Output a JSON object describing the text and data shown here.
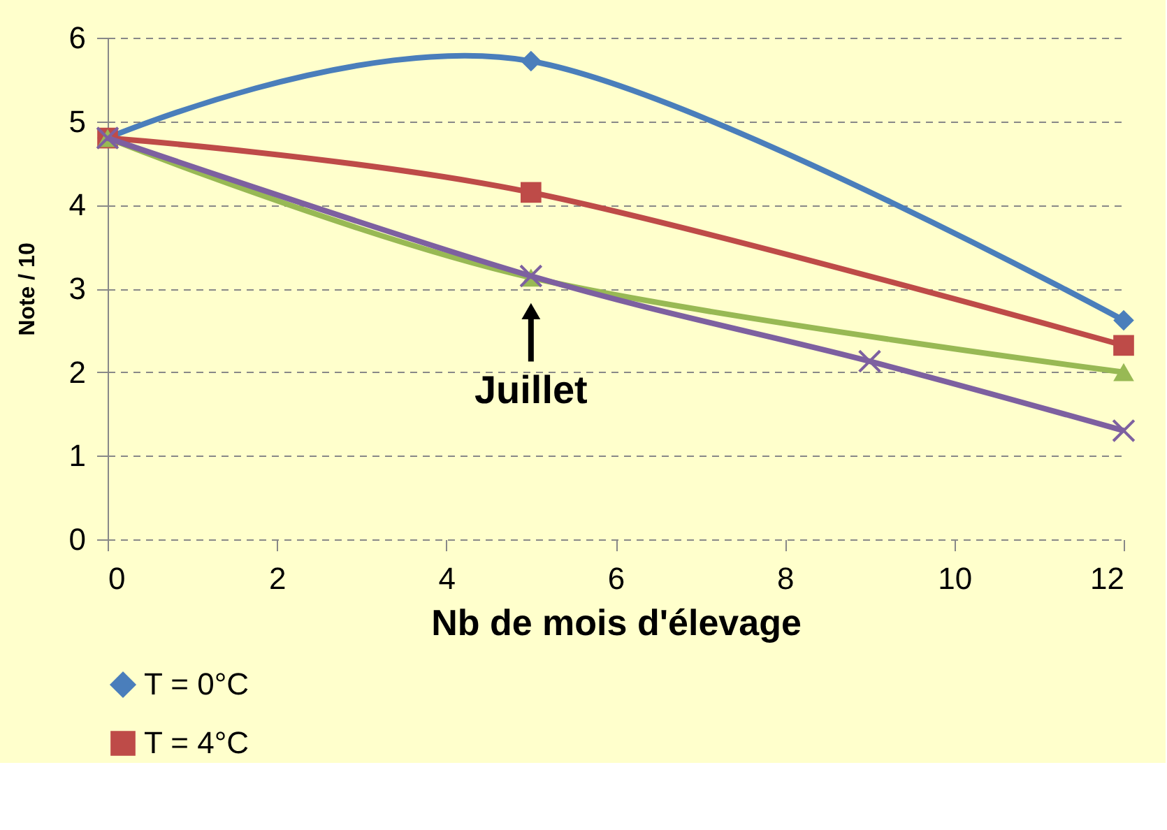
{
  "chart_data": {
    "type": "line",
    "xlabel": "Nb de mois d'élevage",
    "ylabel": "Note / 10",
    "xlim": [
      0,
      12
    ],
    "xticks": [
      0,
      2,
      4,
      6,
      8,
      10,
      12
    ],
    "ylim": [
      0,
      6
    ],
    "yticks": [
      0,
      1,
      2,
      3,
      4,
      5,
      6
    ],
    "grid": "y",
    "legend": "bottom",
    "series": [
      {
        "name": "T = 0°C",
        "color": "#4a7ebb",
        "marker": "diamond",
        "x": [
          0,
          5,
          12
        ],
        "values": [
          4.8,
          5.72,
          2.62
        ]
      },
      {
        "name": "T = 4°C",
        "color": "#be4b48",
        "marker": "square",
        "x": [
          0,
          5,
          12
        ],
        "values": [
          4.8,
          4.15,
          2.32
        ]
      },
      {
        "color": "#98b954",
        "marker": "triangle",
        "x": [
          0,
          5,
          12
        ],
        "values": [
          4.8,
          3.13,
          2.0
        ]
      },
      {
        "color": "#7d60a0",
        "marker": "cross",
        "x": [
          0,
          5,
          9,
          12
        ],
        "values": [
          4.8,
          3.15,
          2.13,
          1.3
        ]
      }
    ],
    "annotations": [
      {
        "text": "Juillet",
        "x": 5,
        "y": 3.13
      }
    ]
  }
}
